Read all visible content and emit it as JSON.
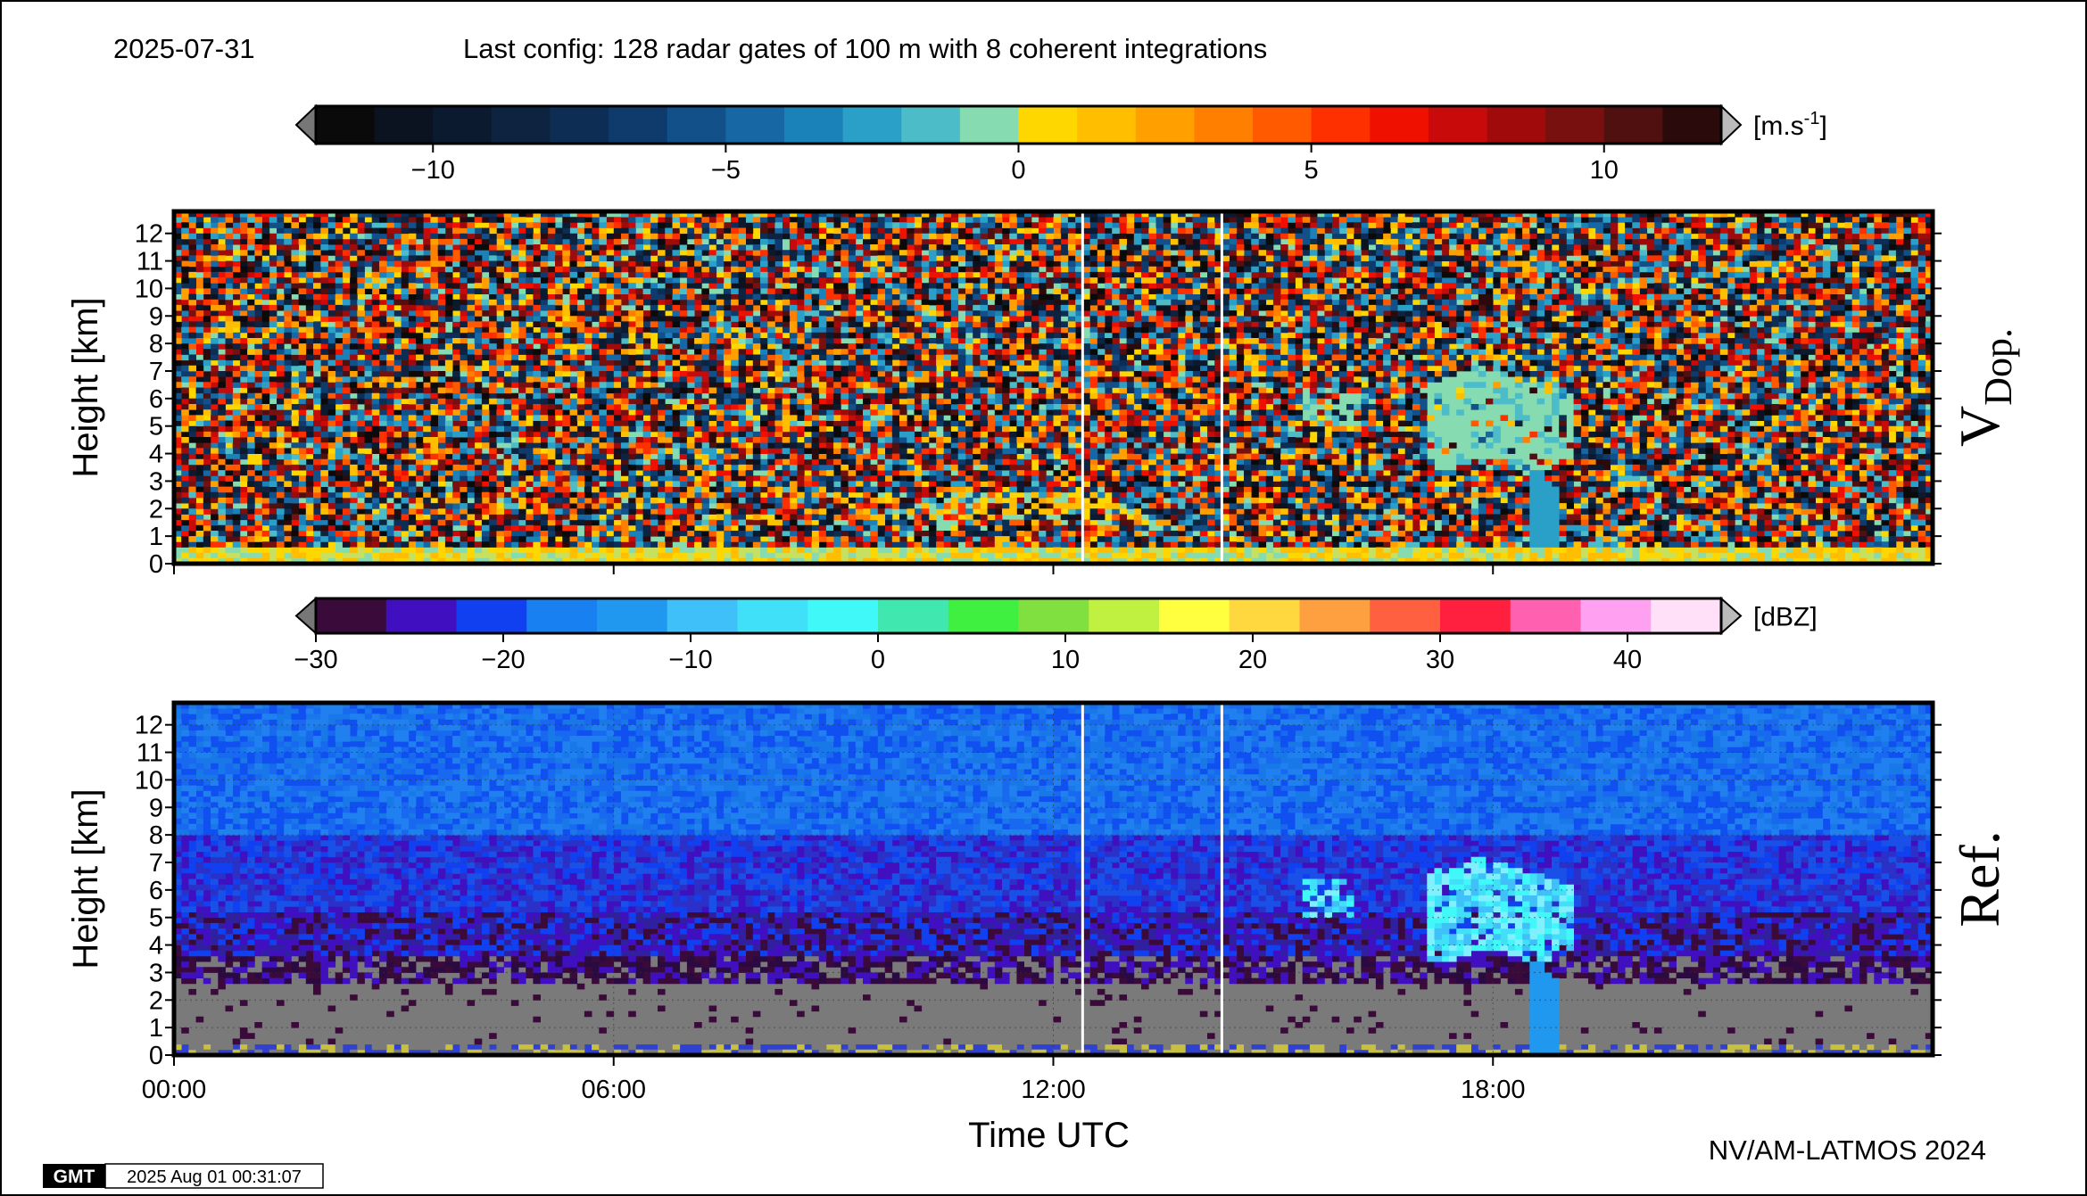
{
  "header": {
    "date": "2025-07-31",
    "config": "Last config: 128 radar gates of 100 m with 8 coherent integrations"
  },
  "chart_data": [
    {
      "type": "heatmap",
      "label_main": "V",
      "label_sub": "Dop.",
      "ylabel": "Height [km]",
      "xlim": [
        0,
        24
      ],
      "ylim": [
        0,
        12.8
      ],
      "yticks": [
        0,
        1,
        2,
        3,
        4,
        5,
        6,
        7,
        8,
        9,
        10,
        11,
        12
      ],
      "xticks": [
        0,
        6,
        12,
        18
      ],
      "gaps": [
        12.4,
        14.3
      ],
      "grid": false,
      "colorbar": {
        "lim": [
          -12,
          12
        ],
        "unit": "[m.s",
        "unit_sup": "-1",
        "unit_end": "]",
        "ticks": [
          {
            "value": -10,
            "label": "−10"
          },
          {
            "value": -5,
            "label": "−5"
          },
          0,
          5,
          10
        ],
        "colors": [
          "#0a0a0a",
          "#0b1220",
          "#0c1a30",
          "#0d2340",
          "#0e2d55",
          "#0f3a6c",
          "#12508a",
          "#1667a3",
          "#1a82b8",
          "#2aa0c8",
          "#4cbcc8",
          "#86dcb0",
          "#ffd700",
          "#ffbf00",
          "#ffa000",
          "#ff7f00",
          "#ff5a00",
          "#ff3000",
          "#f01000",
          "#c80a0a",
          "#a00a0a",
          "#781010",
          "#501010",
          "#2a0a0a"
        ]
      }
    },
    {
      "type": "heatmap",
      "label_main": "Ref.",
      "ylabel": "Height [km]",
      "xlabel": "Time UTC",
      "xlim": [
        0,
        24
      ],
      "ylim": [
        0,
        12.8
      ],
      "yticks": [
        0,
        1,
        2,
        3,
        4,
        5,
        6,
        7,
        8,
        9,
        10,
        11,
        12
      ],
      "xticks": [
        {
          "value": 0,
          "label": "00:00"
        },
        {
          "value": 6,
          "label": "06:00"
        },
        {
          "value": 12,
          "label": "12:00"
        },
        {
          "value": 18,
          "label": "18:00"
        }
      ],
      "gaps": [
        12.4,
        14.3
      ],
      "grid": true,
      "colorbar": {
        "lim": [
          -30,
          45
        ],
        "unit": "[dBZ]",
        "ticks": [
          {
            "value": -30,
            "label": "−30"
          },
          {
            "value": -20,
            "label": "−20"
          },
          {
            "value": -10,
            "label": "−10"
          },
          0,
          10,
          20,
          30,
          40
        ],
        "colors": [
          "#3a0a3a",
          "#4010c0",
          "#1040f0",
          "#1880f0",
          "#2098f0",
          "#40c0f8",
          "#40e0f8",
          "#40f8f8",
          "#40e8b0",
          "#40f040",
          "#80e040",
          "#c0f040",
          "#ffff40",
          "#ffd840",
          "#ffa040",
          "#ff6040",
          "#ff2040",
          "#ff60b0",
          "#ffa0f0",
          "#ffe0f8"
        ]
      }
    }
  ],
  "footer": {
    "credit": "NV/AM-LATMOS 2024",
    "logo": "GMT",
    "stamp": "2025 Aug 01 00:31:07"
  }
}
